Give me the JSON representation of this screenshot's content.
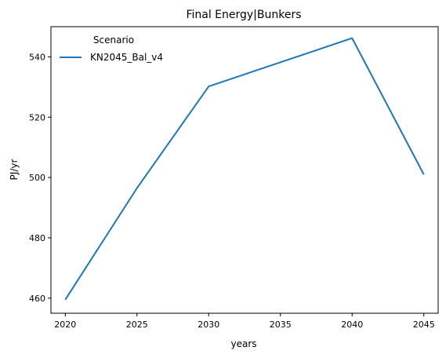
{
  "chart_data": {
    "type": "line",
    "title": "Final Energy|Bunkers",
    "xlabel": "years",
    "ylabel": "PJ/yr",
    "x": [
      2020,
      2025,
      2030,
      2040,
      2045
    ],
    "series": [
      {
        "name": "KN2045_Bal_v4",
        "values": [
          459.5,
          496.5,
          530.2,
          546.2,
          501.0
        ],
        "color": "#1f77b4"
      }
    ],
    "xticks": [
      "2020",
      "2025",
      "2030",
      "2035",
      "2040",
      "2045"
    ],
    "yticks": [
      "460",
      "480",
      "500",
      "520",
      "540"
    ],
    "xlim": [
      2019.0,
      2046.0
    ],
    "ylim": [
      455.0,
      550.0
    ],
    "grid": false,
    "legend": {
      "title": "Scenario",
      "placement": "top-left"
    }
  }
}
